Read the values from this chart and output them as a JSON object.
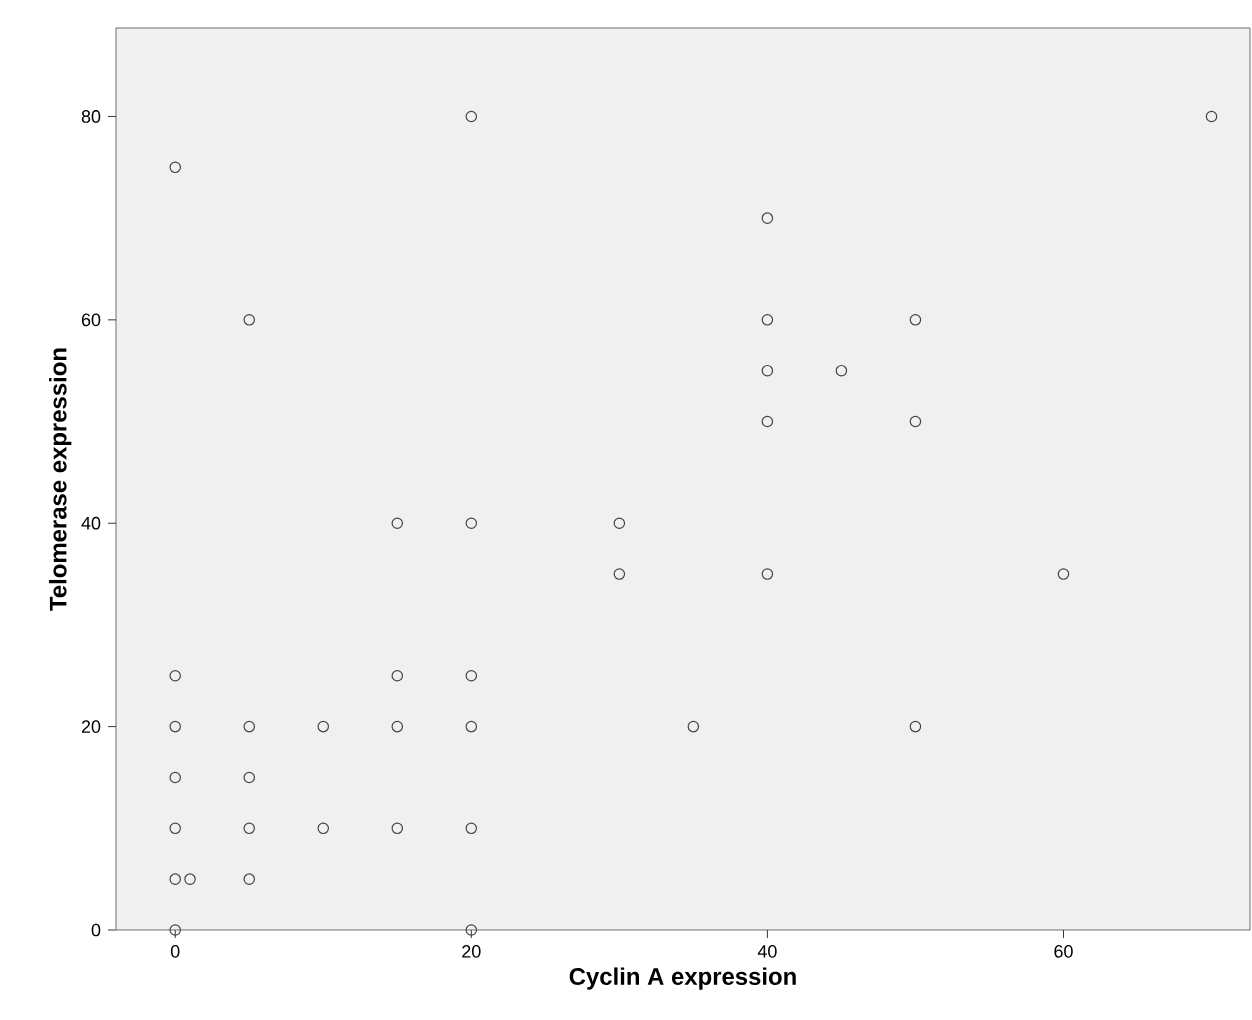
{
  "chart_data": {
    "type": "scatter",
    "xlabel": "Cyclin A expression",
    "ylabel": "Telomerase expression",
    "x": [
      0,
      0,
      0,
      0,
      0,
      0,
      0,
      1,
      5,
      5,
      5,
      5,
      5,
      10,
      10,
      15,
      15,
      15,
      15,
      20,
      20,
      20,
      20,
      20,
      20,
      30,
      30,
      35,
      40,
      40,
      40,
      40,
      40,
      45,
      50,
      50,
      50,
      60,
      70
    ],
    "values": [
      75,
      25,
      20,
      15,
      10,
      5,
      0,
      5,
      60,
      20,
      15,
      10,
      5,
      20,
      10,
      40,
      25,
      20,
      10,
      80,
      40,
      25,
      20,
      10,
      0,
      40,
      35,
      20,
      70,
      60,
      55,
      50,
      35,
      55,
      60,
      50,
      20,
      35,
      80
    ],
    "color": "#444444",
    "marker": "circle",
    "grid": false,
    "xlim": [
      -4,
      72.6
    ],
    "ylim": [
      0,
      88.7
    ],
    "xticks": [
      0,
      20,
      40,
      60
    ],
    "yticks": [
      0,
      20,
      40,
      60,
      80
    ]
  }
}
